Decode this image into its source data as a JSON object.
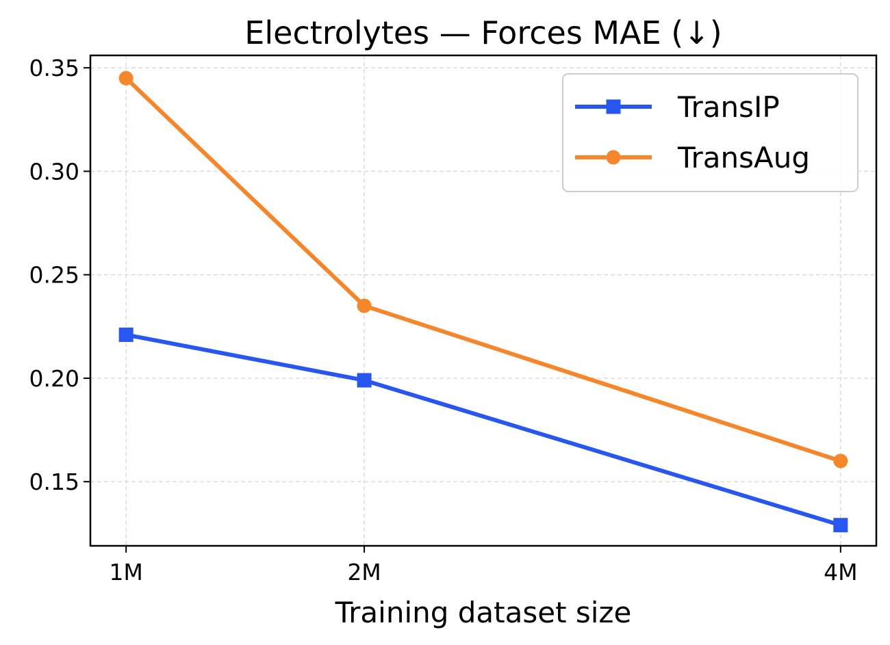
{
  "chart_data": {
    "type": "line",
    "title": "Electrolytes — Forces MAE (↓)",
    "xlabel": "Training dataset size",
    "ylabel": "",
    "x": [
      1,
      2,
      4
    ],
    "categories": [
      "1M",
      "2M",
      "4M"
    ],
    "xlim": [
      0.85,
      4.15
    ],
    "ylim": [
      0.119,
      0.356
    ],
    "yticks": [
      0.15,
      0.2,
      0.25,
      0.3,
      0.35
    ],
    "ytick_labels": [
      "0.15",
      "0.20",
      "0.25",
      "0.30",
      "0.35"
    ],
    "grid": true,
    "legend_position": "top-right",
    "series": [
      {
        "name": "TransIP",
        "values": [
          0.221,
          0.199,
          0.129
        ],
        "color": "#2756f0",
        "marker": "square"
      },
      {
        "name": "TransAug",
        "values": [
          0.345,
          0.235,
          0.16
        ],
        "color": "#f5862b",
        "marker": "circle"
      }
    ]
  }
}
